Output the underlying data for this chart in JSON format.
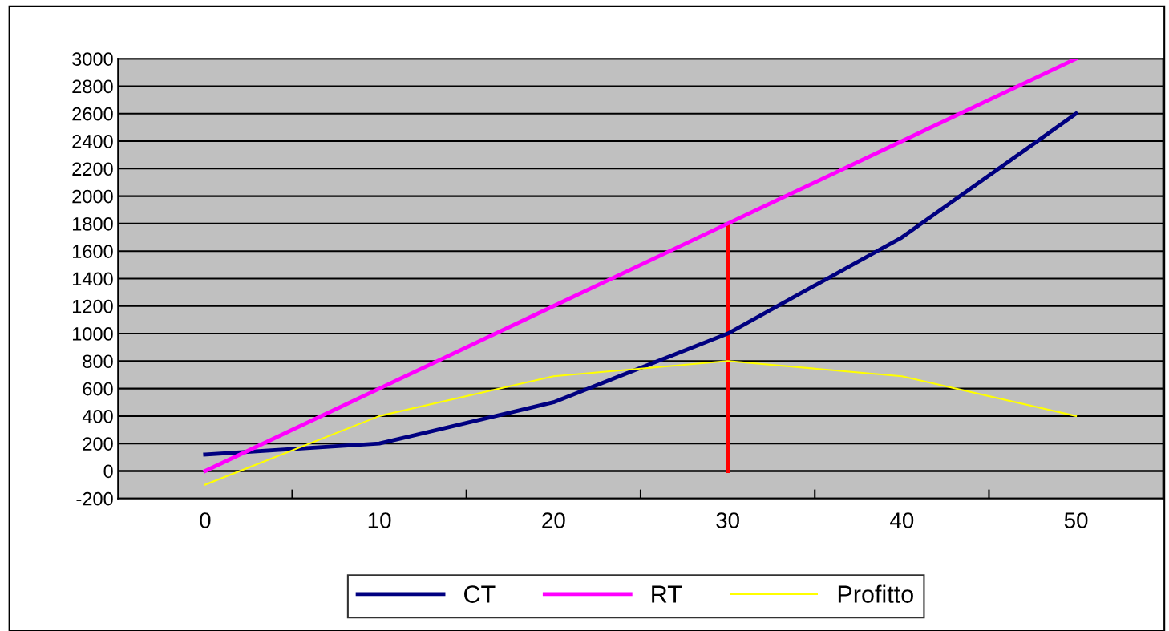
{
  "chart_data": {
    "type": "line",
    "categories": [
      "0",
      "10",
      "20",
      "30",
      "40",
      "50"
    ],
    "series": [
      {
        "name": "CT",
        "color": "#000080",
        "values": [
          120,
          200,
          500,
          1000,
          1700,
          2600
        ]
      },
      {
        "name": "RT",
        "color": "#ff00ff",
        "values": [
          0,
          600,
          1200,
          1800,
          2400,
          3000
        ]
      },
      {
        "name": "Profitto",
        "color": "#ffff00",
        "values": [
          -100,
          400,
          690,
          800,
          690,
          400
        ]
      },
      {
        "type": "line",
        "color": "#ff0000",
        "x": [
          "30",
          "30"
        ],
        "values": [
          0,
          1780
        ]
      }
    ],
    "ylim": [
      -200,
      3000
    ],
    "yticks": [
      -200,
      0,
      200,
      400,
      600,
      800,
      1000,
      1200,
      1400,
      1600,
      1800,
      2000,
      2200,
      2400,
      2600,
      2800,
      3000
    ],
    "grid": "y",
    "legend": "bottom",
    "marker": "none"
  }
}
